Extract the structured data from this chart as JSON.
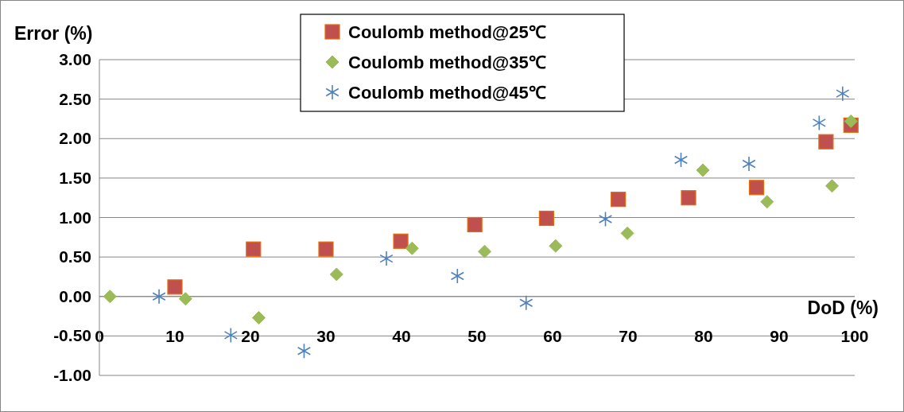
{
  "chart_data": {
    "type": "scatter",
    "xlabel": "DoD (%)",
    "ylabel": "Error (%)",
    "xlim": [
      0,
      100
    ],
    "xticks": [
      0,
      10,
      20,
      30,
      40,
      50,
      60,
      70,
      80,
      90,
      100
    ],
    "ylim": [
      -1,
      3
    ],
    "yticks": [
      {
        "value": -1,
        "label": "-1.00"
      },
      {
        "value": -0.5,
        "label": "-0.50"
      },
      {
        "value": 0,
        "label": "0.00"
      },
      {
        "value": 0.5,
        "label": "0.50"
      },
      {
        "value": 1,
        "label": "1.00"
      },
      {
        "value": 1.5,
        "label": "1.50"
      },
      {
        "value": 2,
        "label": "2.00"
      },
      {
        "value": 2.5,
        "label": "2.50"
      },
      {
        "value": 3,
        "label": "3.00"
      }
    ],
    "grid": "y",
    "legend": "top",
    "series": [
      {
        "name": "Coulomb method@25℃",
        "color": "#c0504d",
        "marker": "square",
        "x": [
          10,
          20.4,
          30,
          39.9,
          49.7,
          59.2,
          68.7,
          78,
          87,
          96.2,
          99.5
        ],
        "values": [
          0.12,
          0.6,
          0.6,
          0.7,
          0.91,
          0.99,
          1.23,
          1.25,
          1.38,
          1.96,
          2.17
        ]
      },
      {
        "name": "Coulomb method@35℃",
        "color": "#9bbb59",
        "marker": "diamond",
        "x": [
          1.4,
          11.4,
          21.1,
          31.4,
          41.4,
          51,
          60.4,
          69.9,
          79.9,
          88.4,
          97,
          99.5
        ],
        "values": [
          0.0,
          -0.03,
          -0.27,
          0.28,
          0.61,
          0.57,
          0.64,
          0.8,
          1.6,
          1.2,
          1.4,
          2.22
        ]
      },
      {
        "name": "Coulomb method@45℃",
        "color": "#4f81bd",
        "marker": "cross",
        "x": [
          7.9,
          17.4,
          27.1,
          38,
          47.4,
          56.5,
          67,
          77,
          86,
          95.3,
          98.4
        ],
        "values": [
          0.0,
          -0.49,
          -0.69,
          0.48,
          0.26,
          -0.08,
          0.98,
          1.73,
          1.68,
          2.2,
          2.57
        ]
      }
    ]
  }
}
